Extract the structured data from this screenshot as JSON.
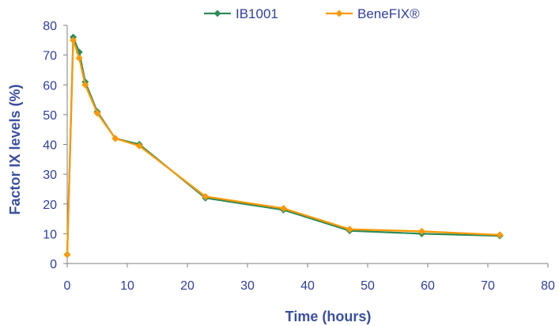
{
  "chart_data": {
    "type": "line",
    "title": "",
    "xlabel": "Time (hours)",
    "ylabel": "Factor IX levels (%)",
    "xlim": [
      0,
      80
    ],
    "ylim": [
      0,
      80
    ],
    "xticks": [
      "0",
      "10",
      "20",
      "30",
      "40",
      "50",
      "60",
      "70",
      "80"
    ],
    "yticks": [
      "0",
      "10",
      "20",
      "30",
      "40",
      "50",
      "60",
      "70",
      "80"
    ],
    "grid": false,
    "legend_position": "top-center",
    "series": [
      {
        "name": "IB1001",
        "color": "#2e8b57",
        "marker": "diamond",
        "x": [
          0,
          1,
          2,
          3,
          5,
          8,
          12,
          23,
          36,
          47,
          59,
          72
        ],
        "y": [
          3,
          76,
          71,
          61,
          51,
          42,
          40,
          22,
          18,
          11,
          10,
          9.3
        ]
      },
      {
        "name": "BeneFIX®",
        "color": "#ff9900",
        "marker": "diamond",
        "x": [
          0,
          1,
          2,
          3,
          5,
          8,
          12,
          23,
          36,
          47,
          59,
          72
        ],
        "y": [
          3,
          75,
          69,
          60,
          50.5,
          42,
          39.5,
          22.5,
          18.5,
          11.5,
          10.8,
          9.6
        ]
      }
    ]
  }
}
